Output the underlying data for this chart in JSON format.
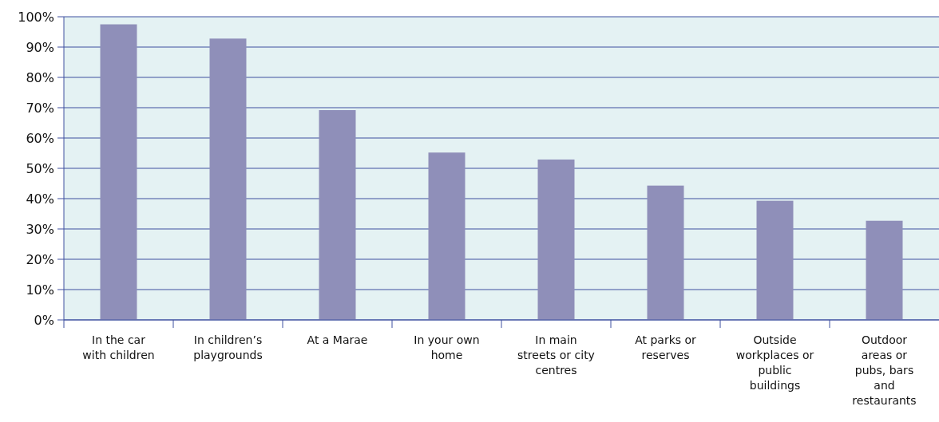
{
  "chart_data": {
    "type": "bar",
    "categories": [
      "In the car with children",
      "In children’s playgrounds",
      "At a Marae",
      "In your own home",
      "In main streets or city centres",
      "At parks or reserves",
      "Outside workplaces or public buildings",
      "Outdoor areas or pubs, bars and restaurants"
    ],
    "values": [
      97.5,
      92.8,
      69.2,
      55.2,
      52.9,
      44.3,
      39.3,
      32.7
    ],
    "color": "#8f8fb9",
    "ylim": [
      0,
      100
    ],
    "yticks": [
      {
        "value": 0,
        "label": "0%"
      },
      {
        "value": 10,
        "label": "10%"
      },
      {
        "value": 20,
        "label": "20%"
      },
      {
        "value": 30,
        "label": "30%"
      },
      {
        "value": 40,
        "label": "40%"
      },
      {
        "value": 50,
        "label": "50%"
      },
      {
        "value": 60,
        "label": "60%"
      },
      {
        "value": 70,
        "label": "70%"
      },
      {
        "value": 80,
        "label": "80%"
      },
      {
        "value": 90,
        "label": "90%"
      },
      {
        "value": 100,
        "label": "100%"
      }
    ],
    "grid": "y"
  }
}
